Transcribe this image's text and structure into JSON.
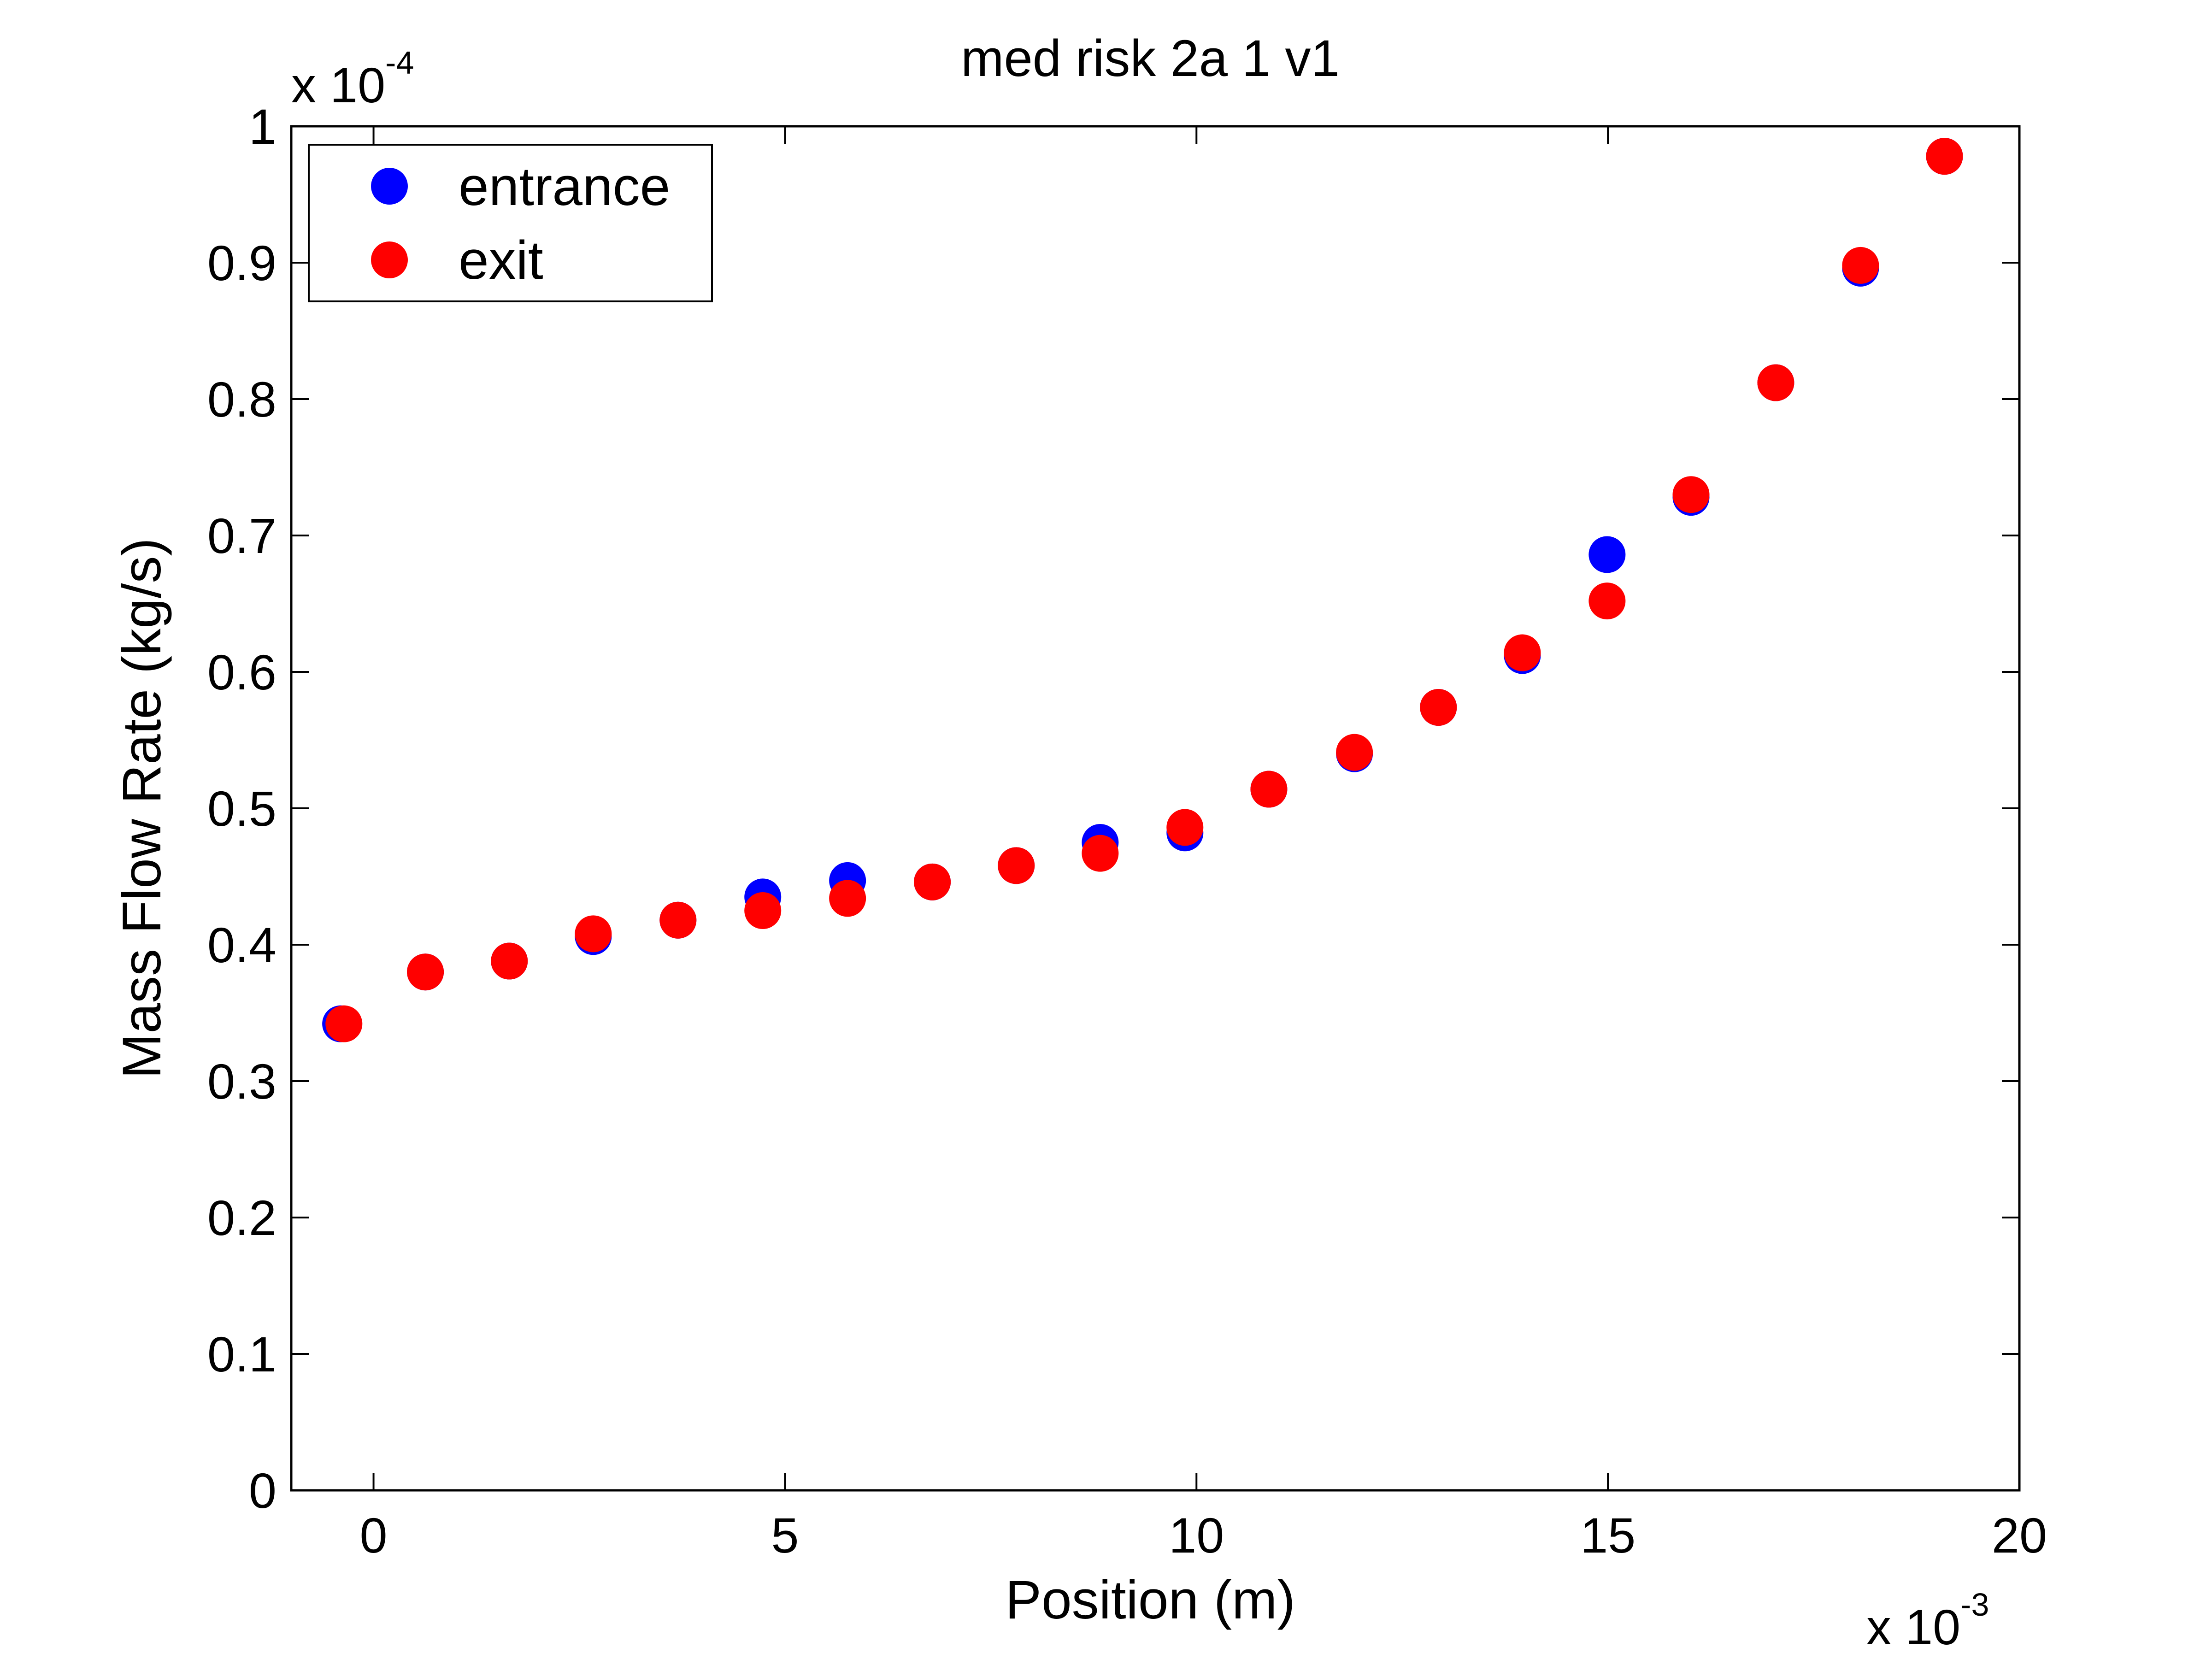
{
  "chart_data": {
    "type": "scatter",
    "title": "med risk 2a 1 v1",
    "xlabel": "Position (m)",
    "ylabel": "Mass Flow Rate (kg/s)",
    "x_multiplier": {
      "base": "x 10",
      "exponent": "-3"
    },
    "y_multiplier": {
      "base": "x 10",
      "exponent": "-4"
    },
    "xlim": [
      -1,
      20
    ],
    "ylim": [
      0,
      1
    ],
    "x_unit_scale": 0.001,
    "y_unit_scale": 0.0001,
    "xticks": [
      0,
      5,
      10,
      15,
      20
    ],
    "xtick_labels": [
      "0",
      "5",
      "10",
      "15",
      "20"
    ],
    "yticks": [
      0,
      0.1,
      0.2,
      0.3,
      0.4,
      0.5,
      0.6,
      0.7,
      0.8,
      0.9,
      1
    ],
    "ytick_labels": [
      "0",
      "0.1",
      "0.2",
      "0.3",
      "0.4",
      "0.5",
      "0.6",
      "0.7",
      "0.8",
      "0.9",
      "1"
    ],
    "grid": false,
    "legend_position": "top-left",
    "series": [
      {
        "name": "entrance",
        "color": "#0000ff",
        "x": [
          -0.4,
          0.63,
          1.65,
          2.67,
          3.7,
          4.73,
          5.76,
          6.79,
          7.81,
          8.83,
          9.86,
          10.88,
          11.92,
          12.94,
          13.96,
          14.99,
          16.01,
          17.04,
          18.07,
          19.09
        ],
        "y": [
          0.342,
          0.38,
          0.388,
          0.406,
          0.418,
          0.435,
          0.447,
          0.446,
          0.458,
          0.475,
          0.482,
          0.514,
          0.54,
          0.574,
          0.612,
          0.686,
          0.728,
          0.812,
          0.896,
          0.978
        ]
      },
      {
        "name": "exit",
        "color": "#ff0000",
        "x": [
          -0.36,
          0.63,
          1.65,
          2.67,
          3.7,
          4.73,
          5.76,
          6.79,
          7.81,
          8.83,
          9.86,
          10.88,
          11.92,
          12.94,
          13.96,
          14.99,
          16.01,
          17.04,
          18.07,
          19.09
        ],
        "y": [
          0.342,
          0.38,
          0.388,
          0.408,
          0.418,
          0.425,
          0.434,
          0.446,
          0.458,
          0.467,
          0.486,
          0.514,
          0.541,
          0.574,
          0.614,
          0.652,
          0.73,
          0.812,
          0.898,
          0.978
        ]
      }
    ]
  }
}
